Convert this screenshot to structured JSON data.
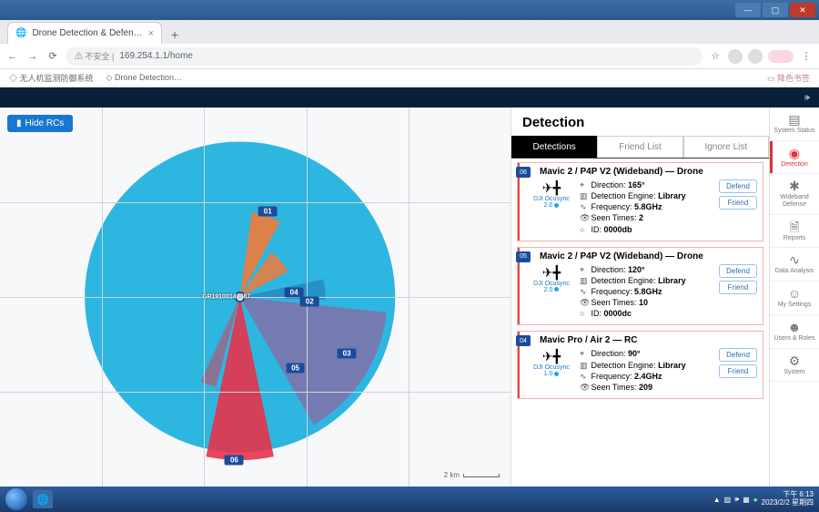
{
  "window": {
    "title": "Drone Detection & Defen…"
  },
  "browser": {
    "url_prefix": "⚠ 不安全 |",
    "url": "169.254.1.1/home",
    "bookmarks": [
      "无人机监测防御系统",
      "Drone Detection…"
    ],
    "bookmark_right": "降色书签"
  },
  "hide_btn": "Hide RCs",
  "radar": {
    "center_label": "GP19100149487",
    "scale_label": "2 km",
    "circle_color": "#2db6e0",
    "bg": "#f7f8fa",
    "sectors": [
      {
        "start": 8,
        "end": 28,
        "fill": "#f07b3a",
        "opacity": 0.9,
        "r": 0.55
      },
      {
        "start": 35,
        "end": 62,
        "fill": "#f07b3a",
        "opacity": 0.85,
        "r": 0.35
      },
      {
        "start": 78,
        "end": 92,
        "fill": "#1a4c9c",
        "opacity": 0.35,
        "r": 0.55
      },
      {
        "start": 96,
        "end": 150,
        "fill": "#b04a8a",
        "opacity": 0.55,
        "r": 0.95
      },
      {
        "start": 168,
        "end": 192,
        "fill": "#e7324a",
        "opacity": 0.9,
        "r": 1.05
      },
      {
        "start": 195,
        "end": 205,
        "fill": "#e7324a",
        "opacity": 0.5,
        "r": 0.6
      }
    ],
    "markers": [
      {
        "id": "01",
        "angle": 18,
        "dist": 0.58
      },
      {
        "id": "04",
        "angle": 85,
        "dist": 0.35
      },
      {
        "id": "02",
        "angle": 94,
        "dist": 0.45
      },
      {
        "id": "03",
        "angle": 118,
        "dist": 0.78
      },
      {
        "id": "05",
        "angle": 142,
        "dist": 0.58
      },
      {
        "id": "06",
        "angle": 182,
        "dist": 1.05
      }
    ]
  },
  "detection": {
    "heading": "Detection",
    "tabs": [
      "Detections",
      "Friend List",
      "Ignore List"
    ],
    "active_tab": 0,
    "btn_defend": "Defend",
    "btn_friend": "Friend",
    "labels": {
      "direction": "Direction:",
      "engine": "Detection Engine:",
      "frequency": "Frequency:",
      "seen": "Seen Times:",
      "id": "ID:"
    },
    "items": [
      {
        "badge": "06",
        "name": "Mavic 2 / P4P V2 (Wideband) — Drone",
        "protocol": "DJI Ocusync 2.0",
        "direction": "165°",
        "engine": "Library",
        "frequency": "5.8GHz",
        "seen": "2",
        "id": "0000db"
      },
      {
        "badge": "05",
        "name": "Mavic 2 / P4P V2 (Wideband) — Drone",
        "protocol": "DJI Ocusync 2.0",
        "direction": "120°",
        "engine": "Library",
        "frequency": "5.8GHz",
        "seen": "10",
        "id": "0000dc"
      },
      {
        "badge": "04",
        "name": "Mavic Pro / Air 2 — RC",
        "protocol": "DJI Ocusync 1.0",
        "direction": "90°",
        "engine": "Library",
        "frequency": "2.4GHz",
        "seen": "209",
        "id": ""
      }
    ]
  },
  "rail": [
    {
      "icon": "▤",
      "label": "System Status"
    },
    {
      "icon": "◉",
      "label": "Detection",
      "active": true
    },
    {
      "icon": "✱",
      "label": "Wideband Defense"
    },
    {
      "icon": "🗎",
      "label": "Reports"
    },
    {
      "icon": "∿",
      "label": "Data Analysis"
    },
    {
      "icon": "☺",
      "label": "My Settings"
    },
    {
      "icon": "☻",
      "label": "Users & Roles"
    },
    {
      "icon": "⚙",
      "label": "System"
    }
  ],
  "taskbar": {
    "time": "下午 6:13",
    "date": "2023/2/2 星期四"
  }
}
